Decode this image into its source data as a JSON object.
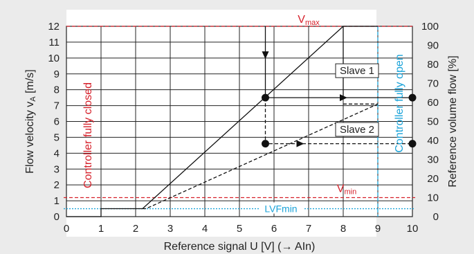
{
  "chart_data": {
    "type": "line",
    "xlabel": "Reference signal U [V] (→ AIn)",
    "ylabel_left_main": "Flow velocity v",
    "ylabel_left_sub": "A",
    "ylabel_left_unit": " [m/s]",
    "ylabel_right": "Reference volume flow [%]",
    "xlim": [
      0,
      10
    ],
    "ylim": [
      0,
      12
    ],
    "ylim_right": [
      0,
      100
    ],
    "x_ticks": [
      "0",
      "1",
      "2",
      "3",
      "4",
      "5",
      "6",
      "7",
      "8",
      "9",
      "10"
    ],
    "y_ticks": [
      "0",
      "1",
      "2",
      "3",
      "4",
      "5",
      "6",
      "7",
      "8",
      "9",
      "10",
      "11",
      "12"
    ],
    "y_right_ticks": [
      "0",
      "10",
      "20",
      "30",
      "40",
      "50",
      "60",
      "70",
      "80",
      "90",
      "100"
    ],
    "grid": true,
    "reference_lines": [
      {
        "name": "V",
        "sub": "max",
        "axis": "y",
        "value": 12,
        "color": "#d6202a",
        "style": "dashed"
      },
      {
        "name": "V",
        "sub": "min",
        "axis": "y",
        "value": 1.2,
        "color": "#d6202a",
        "style": "dashed"
      },
      {
        "name": "LVFmin",
        "axis": "y",
        "value": 0.5,
        "color": "#1aa3d9",
        "style": "dotted"
      },
      {
        "axis": "x",
        "value": 9,
        "color": "#1aa3d9",
        "style": "dashed"
      }
    ],
    "vertical_labels": {
      "left": "Controller fully closed",
      "right": "Controller fully open"
    },
    "series": [
      {
        "name": "Slave 1",
        "style": "solid",
        "x": [
          0,
          1,
          1,
          2.2,
          8,
          9
        ],
        "y": [
          0,
          0,
          0.5,
          0.5,
          12,
          12
        ]
      },
      {
        "name": "Slave 2",
        "style": "dashed",
        "x": [
          2.2,
          2.3,
          9
        ],
        "y": [
          0.5,
          0.5,
          7.1
        ]
      }
    ],
    "markers": [
      {
        "x": 5.75,
        "y": 7.5
      },
      {
        "x": 10,
        "y": 7.5
      },
      {
        "x": 5.75,
        "y": 4.6
      },
      {
        "x": 10,
        "y": 4.6
      }
    ],
    "annotation_paths": [
      {
        "style": "solid",
        "points": [
          [
            5.75,
            12
          ],
          [
            5.75,
            7.5
          ]
        ],
        "arrow_at": [
          5.75,
          10.2
        ],
        "arrow_dir": "down"
      },
      {
        "style": "solid",
        "points": [
          [
            5.75,
            7.5
          ],
          [
            10,
            7.5
          ]
        ],
        "arrow_at": [
          8,
          7.5
        ],
        "arrow_dir": "right"
      },
      {
        "style": "dashed",
        "points": [
          [
            5.75,
            7.5
          ],
          [
            5.75,
            4.6
          ],
          [
            10,
            4.6
          ]
        ],
        "arrow_at": [
          6.75,
          4.6
        ],
        "arrow_dir": "right"
      },
      {
        "style": "dashed",
        "points": [
          [
            8,
            7.1
          ],
          [
            9,
            7.1
          ]
        ]
      },
      {
        "style": "solid",
        "points": [
          [
            8,
            7.5
          ],
          [
            8,
            12
          ]
        ]
      }
    ],
    "box_labels": [
      {
        "text": "Slave 1",
        "x": 8.4,
        "y": 9.2
      },
      {
        "text": "Slave 2",
        "x": 8.4,
        "y": 5.5
      }
    ]
  }
}
